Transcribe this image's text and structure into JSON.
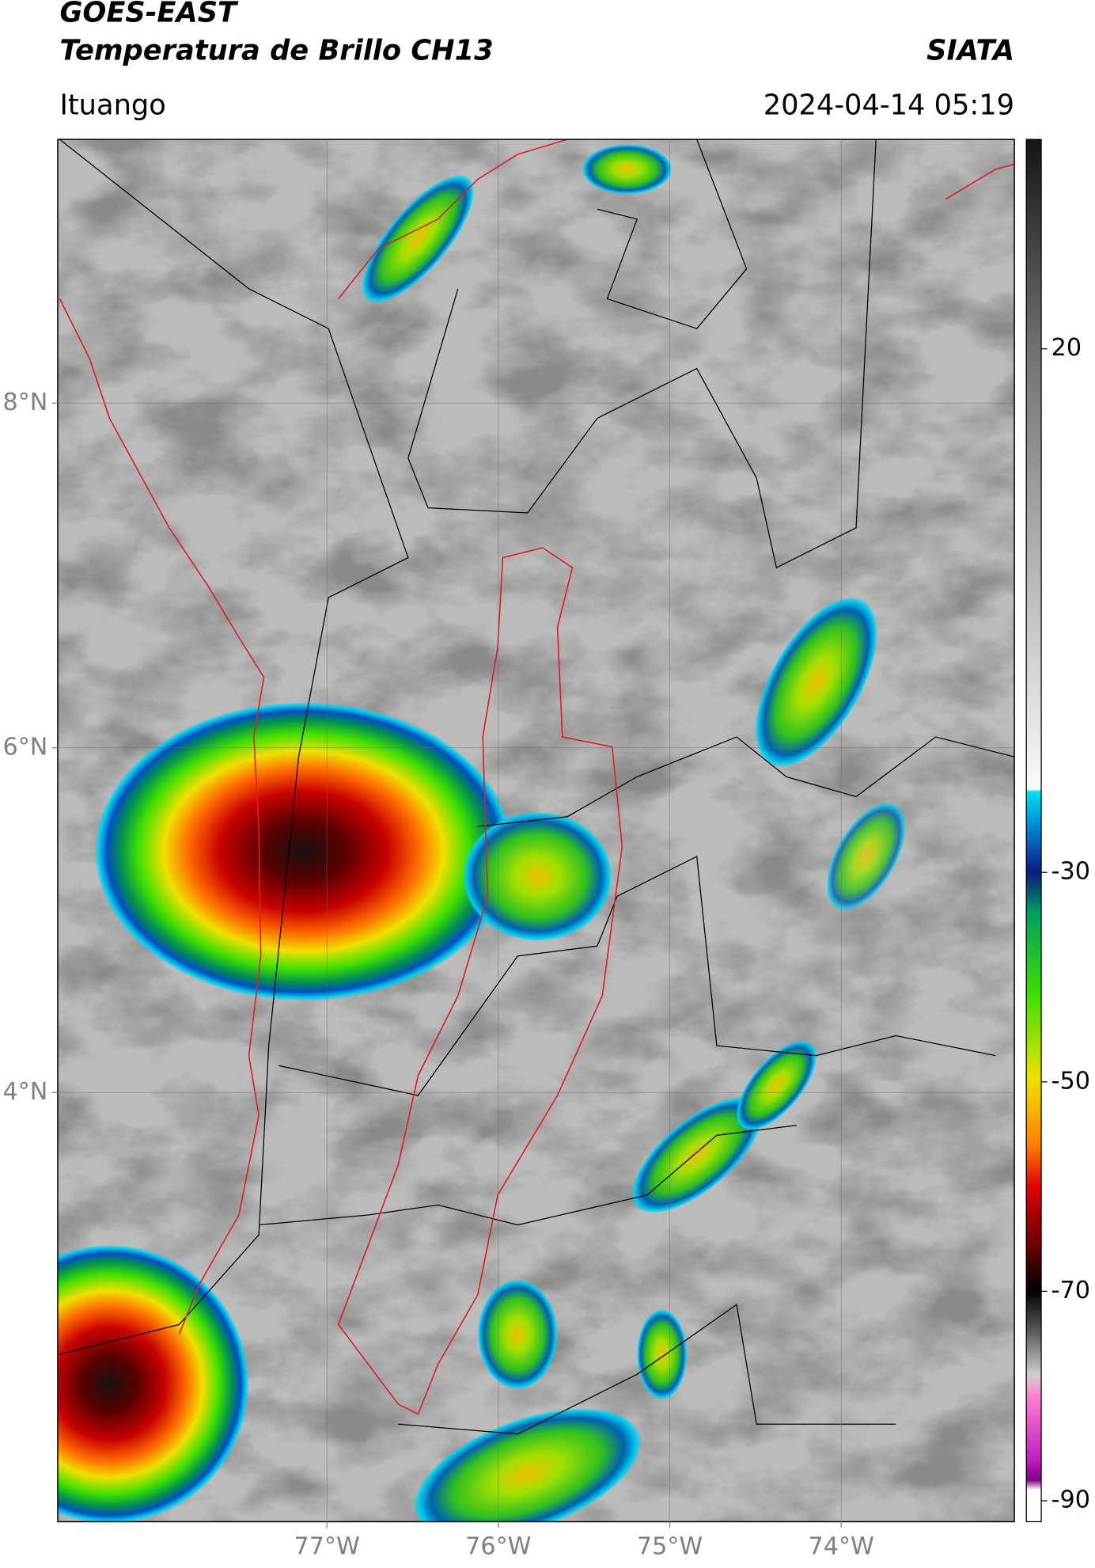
{
  "header": {
    "title": "GOES-EAST",
    "subtitle": "Temperatura de Brillo CH13",
    "source": "SIATA",
    "location": "Ituango",
    "datetime": "2024-04-14 05:19"
  },
  "map": {
    "lonlim": [
      -78.57,
      -72.99
    ],
    "latlim": [
      1.51,
      9.53
    ],
    "lon_ticks": [
      {
        "value": -77,
        "label": "77°W"
      },
      {
        "value": -76,
        "label": "76°W"
      },
      {
        "value": -75,
        "label": "75°W"
      },
      {
        "value": -74,
        "label": "74°W"
      }
    ],
    "lat_ticks": [
      {
        "value": 8,
        "label": "8°N"
      },
      {
        "value": 6,
        "label": "6°N"
      },
      {
        "value": 4,
        "label": "4°N"
      }
    ]
  },
  "colorbar": {
    "lim": [
      -92,
      40
    ],
    "ticks": [
      20,
      -30,
      -50,
      -70,
      -90
    ]
  }
}
